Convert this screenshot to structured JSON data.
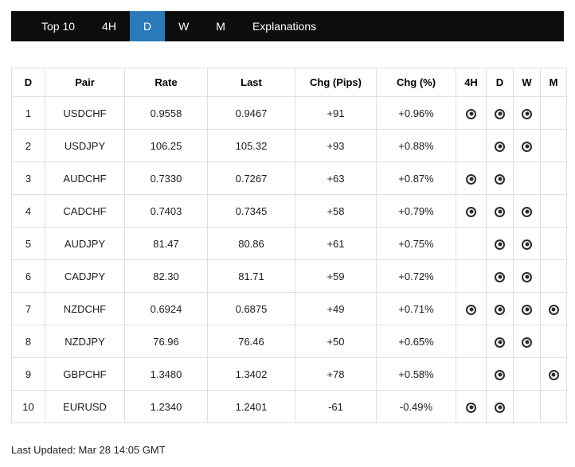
{
  "colors": {
    "nav_bg": "#0d0d0d",
    "accent": "#2a7ab9",
    "icon": "#2b2b2b"
  },
  "nav": {
    "items": [
      {
        "label": "Top 10",
        "active": false
      },
      {
        "label": "4H",
        "active": false
      },
      {
        "label": "D",
        "active": true
      },
      {
        "label": "W",
        "active": false
      },
      {
        "label": "M",
        "active": false
      },
      {
        "label": "Explanations",
        "active": false
      }
    ]
  },
  "table": {
    "headers": [
      "D",
      "Pair",
      "Rate",
      "Last",
      "Chg (Pips)",
      "Chg (%)",
      "4H",
      "D",
      "W",
      "M"
    ],
    "signal_icon": "bullseye-icon",
    "rows": [
      {
        "rank": "1",
        "pair": "USDCHF",
        "rate": "0.9558",
        "last": "0.9467",
        "chg_pips": "+91",
        "chg_pct": "+0.96%",
        "signals": {
          "h4": true,
          "d": true,
          "w": true,
          "m": false
        }
      },
      {
        "rank": "2",
        "pair": "USDJPY",
        "rate": "106.25",
        "last": "105.32",
        "chg_pips": "+93",
        "chg_pct": "+0.88%",
        "signals": {
          "h4": false,
          "d": true,
          "w": true,
          "m": false
        }
      },
      {
        "rank": "3",
        "pair": "AUDCHF",
        "rate": "0.7330",
        "last": "0.7267",
        "chg_pips": "+63",
        "chg_pct": "+0.87%",
        "signals": {
          "h4": true,
          "d": true,
          "w": false,
          "m": false
        }
      },
      {
        "rank": "4",
        "pair": "CADCHF",
        "rate": "0.7403",
        "last": "0.7345",
        "chg_pips": "+58",
        "chg_pct": "+0.79%",
        "signals": {
          "h4": true,
          "d": true,
          "w": true,
          "m": false
        }
      },
      {
        "rank": "5",
        "pair": "AUDJPY",
        "rate": "81.47",
        "last": "80.86",
        "chg_pips": "+61",
        "chg_pct": "+0.75%",
        "signals": {
          "h4": false,
          "d": true,
          "w": true,
          "m": false
        }
      },
      {
        "rank": "6",
        "pair": "CADJPY",
        "rate": "82.30",
        "last": "81.71",
        "chg_pips": "+59",
        "chg_pct": "+0.72%",
        "signals": {
          "h4": false,
          "d": true,
          "w": true,
          "m": false
        }
      },
      {
        "rank": "7",
        "pair": "NZDCHF",
        "rate": "0.6924",
        "last": "0.6875",
        "chg_pips": "+49",
        "chg_pct": "+0.71%",
        "signals": {
          "h4": true,
          "d": true,
          "w": true,
          "m": true
        }
      },
      {
        "rank": "8",
        "pair": "NZDJPY",
        "rate": "76.96",
        "last": "76.46",
        "chg_pips": "+50",
        "chg_pct": "+0.65%",
        "signals": {
          "h4": false,
          "d": true,
          "w": true,
          "m": false
        }
      },
      {
        "rank": "9",
        "pair": "GBPCHF",
        "rate": "1.3480",
        "last": "1.3402",
        "chg_pips": "+78",
        "chg_pct": "+0.58%",
        "signals": {
          "h4": false,
          "d": true,
          "w": false,
          "m": true
        }
      },
      {
        "rank": "10",
        "pair": "EURUSD",
        "rate": "1.2340",
        "last": "1.2401",
        "chg_pips": "-61",
        "chg_pct": "-0.49%",
        "signals": {
          "h4": true,
          "d": true,
          "w": false,
          "m": false
        }
      }
    ]
  },
  "footer": {
    "last_updated": "Last Updated: Mar 28 14:05 GMT"
  }
}
